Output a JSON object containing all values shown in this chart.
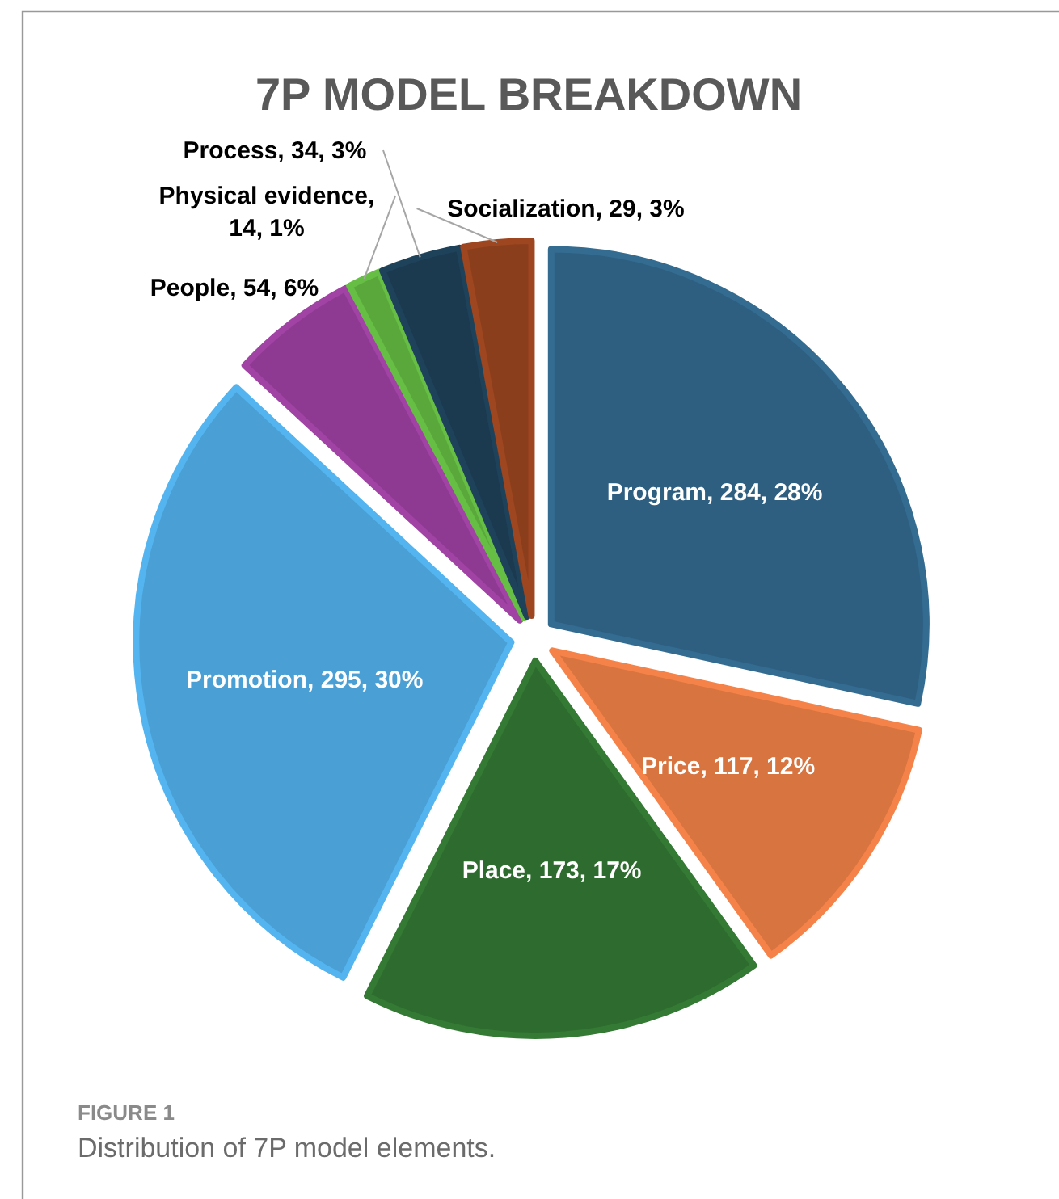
{
  "chart_data": {
    "type": "pie",
    "title": "7P MODEL BREAKDOWN",
    "categories": [
      "Program",
      "Price",
      "Place",
      "Promotion",
      "People",
      "Physical evidence",
      "Process",
      "Socialization"
    ],
    "values": [
      284,
      117,
      173,
      295,
      54,
      14,
      34,
      29
    ],
    "colors": [
      "#2e5f80",
      "#d87440",
      "#2e6b2e",
      "#4a9fd4",
      "#8e3a92",
      "#5aa83c",
      "#1b3a50",
      "#8b3e1c"
    ],
    "value_labels": [
      ", 284, 28%",
      ", 117, 12%",
      ", 173, 17%",
      ", 295, 30%",
      ", 54, 6%",
      ", 14, 1%",
      ", 34, 3%",
      ", 29, 3%"
    ],
    "annotations": [
      "FIGURE 1",
      "Distribution of 7P model elements."
    ]
  }
}
